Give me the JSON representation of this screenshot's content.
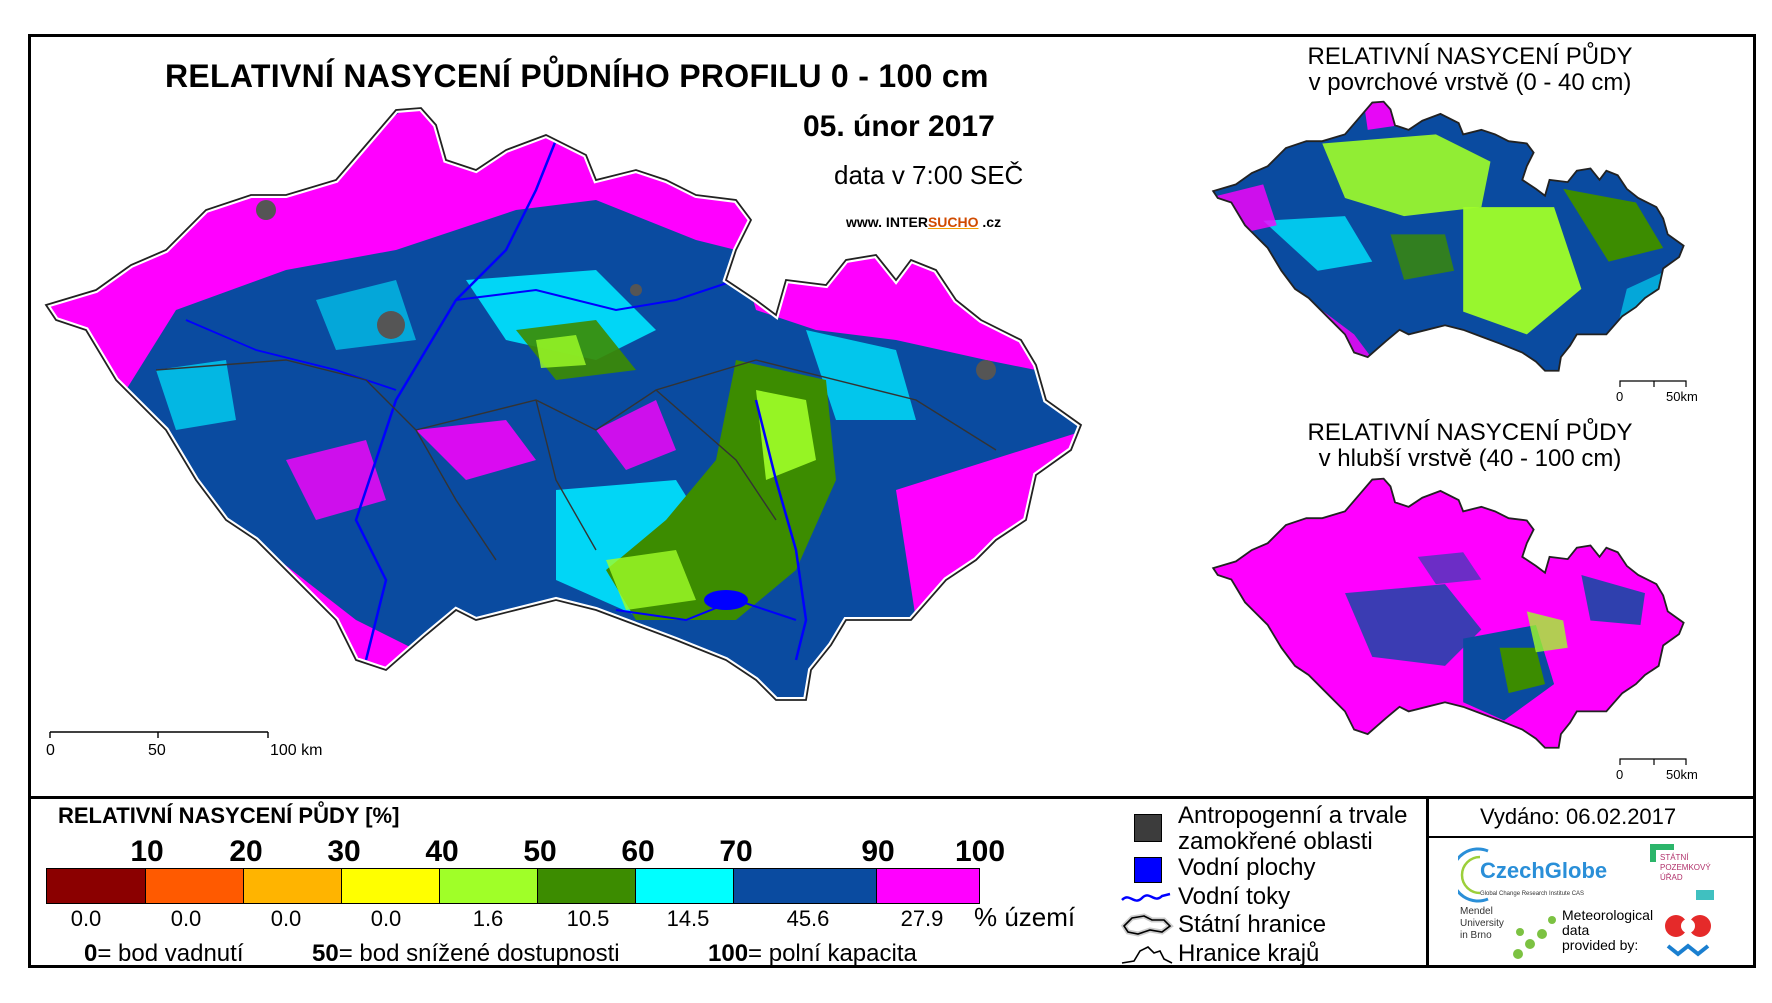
{
  "main": {
    "title": "RELATIVNÍ NASYCENÍ PŮDNÍHO PROFILU 0 - 100 cm",
    "date": "05. únor 2017",
    "time": "data v 7:00 SEČ",
    "website_prefix": "www. INTER",
    "website_highlight": "SUCHO",
    "website_suffix": " .cz",
    "scale_labels": [
      "0",
      "50",
      "100 km"
    ]
  },
  "inset_top": {
    "title_line1": "RELATIVNÍ NASYCENÍ PŮDY",
    "title_line2": "v povrchové vrstvě (0 - 40 cm)",
    "scale_labels": [
      "0",
      "50km"
    ]
  },
  "inset_bottom": {
    "title_line1": "RELATIVNÍ NASYCENÍ PŮDY",
    "title_line2": "v hlubší vrstvě (40 - 100 cm)",
    "scale_labels": [
      "0",
      "50km"
    ]
  },
  "legend": {
    "title": "RELATIVNÍ NASYCENÍ PŮDY [%]",
    "ticks": [
      "10",
      "20",
      "30",
      "40",
      "50",
      "60",
      "70",
      "90",
      "100"
    ],
    "classes": [
      {
        "color": "#8b0000",
        "pct": "0.0"
      },
      {
        "color": "#ff5a00",
        "pct": "0.0"
      },
      {
        "color": "#ffb400",
        "pct": "0.0"
      },
      {
        "color": "#ffff00",
        "pct": "0.0"
      },
      {
        "color": "#a0ff28",
        "pct": "1.6"
      },
      {
        "color": "#3c8c00",
        "pct": "10.5"
      },
      {
        "color": "#00ffff",
        "pct": "14.5"
      },
      {
        "color": "#0a4ba0",
        "pct": "45.6"
      },
      {
        "color": "#ff00ff",
        "pct": "27.9"
      }
    ],
    "pct_unit": "% území",
    "ref_wilting_num": "0",
    "ref_wilting_text": "= bod vadnutí",
    "ref_reduced_num": "50",
    "ref_reduced_text": "= bod snížené dostupnosti",
    "ref_capacity_num": "100",
    "ref_capacity_text": "= polní kapacita"
  },
  "symbols": {
    "anthropogenic_line1": "Antropogenní a trvale",
    "anthropogenic_line2": "zamokřené oblasti",
    "water_bodies": "Vodní plochy",
    "water_courses": "Vodní toky",
    "state_border": "Státní hranice",
    "region_border": "Hranice krajů",
    "anthropogenic_color": "#3c3c3c",
    "water_color": "#0000ff"
  },
  "footer": {
    "issued": "Vydáno: 06.02.2017",
    "czechglobe": "CzechGlobe",
    "czechglobe_sub": "Global Change Research Institute CAS",
    "mendel_line1": "Mendel",
    "mendel_line2": "University",
    "mendel_line3": "in Brno",
    "meteo_line1": "Meteorological",
    "meteo_line2": "data",
    "meteo_line3": "provided by:",
    "spu_line1": "STÁTNÍ",
    "spu_line2": "POZEMKOVÝ",
    "spu_line3": "ÚŘAD"
  }
}
